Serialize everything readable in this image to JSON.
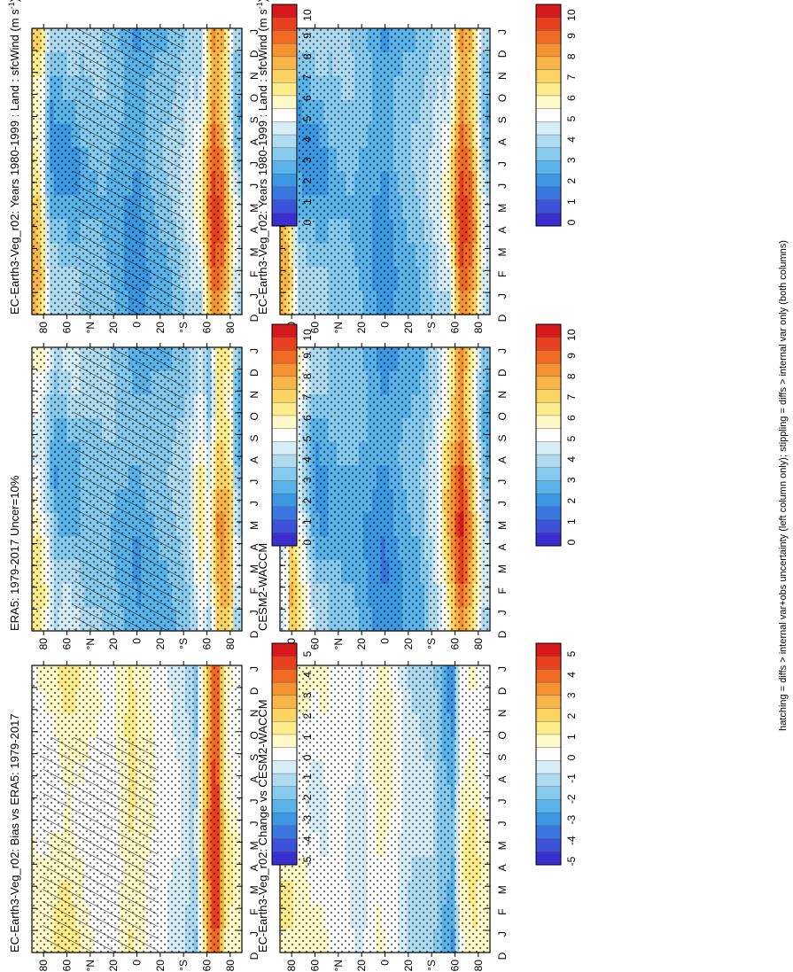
{
  "months": [
    "D",
    "J",
    "F",
    "M",
    "A",
    "M",
    "J",
    "J",
    "A",
    "S",
    "O",
    "N",
    "D",
    "J"
  ],
  "lat_ticks": [
    "80",
    "60",
    "°N",
    "20",
    "0",
    "20",
    "°S",
    "60",
    "80"
  ],
  "footnote": "hatching = diffs > internal var+obs uncertainty (left column only); stippling = diffs > internal var only (both columns)",
  "colorbars": {
    "abs": {
      "labels": [
        "10",
        "9",
        "8",
        "7",
        "6",
        "5",
        "4",
        "3",
        "2",
        "1",
        "0"
      ],
      "colors": [
        "#d7191c",
        "#e8401f",
        "#f06a23",
        "#f59232",
        "#f8b548",
        "#fbd463",
        "#fdec8c",
        "#fffac8",
        "#ffffff",
        "#d8eef7",
        "#b0dcf2",
        "#86caee",
        "#5ab4ea",
        "#3d98e3",
        "#3a76df",
        "#3c52d8",
        "#3a2ed0"
      ]
    },
    "diff": {
      "labels": [
        "5",
        "4",
        "3",
        "2",
        "1",
        "0",
        "-1",
        "-2",
        "-3",
        "-4",
        "-5"
      ],
      "colors": [
        "#d7191c",
        "#e8401f",
        "#f06a23",
        "#f59232",
        "#f8b548",
        "#fbd463",
        "#fdec8c",
        "#fffac8",
        "#ffffff",
        "#d8eef7",
        "#b0dcf2",
        "#86caee",
        "#5ab4ea",
        "#3d98e3",
        "#3a76df",
        "#3c52d8",
        "#3a2ed0"
      ]
    }
  },
  "panels": [
    {
      "id": "top-left",
      "title": "EC-Earth3-Veg_r02: Years 1980-1999 : Land : sfcWind (m s",
      "title_sup": "-1",
      "title_end": ")",
      "scale": "abs"
    },
    {
      "id": "mid-left",
      "title": "ERA5: 1979-2017 Uncer=10%",
      "scale": "abs"
    },
    {
      "id": "bot-left",
      "title": "EC-Earth3-Veg_r02: Bias vs ERA5: 1979-2017",
      "scale": "diff"
    },
    {
      "id": "top-right",
      "title": "EC-Earth3-Veg_r02: Years 1980-1999 : Land : sfcWind (m s",
      "title_sup": "-1",
      "title_end": ")",
      "scale": "abs"
    },
    {
      "id": "mid-right",
      "title": "CESM2-WACCM",
      "scale": "abs"
    },
    {
      "id": "bot-right",
      "title": "EC-Earth3-Veg_r02: Change vs CESM2-WACCM",
      "scale": "diff"
    }
  ],
  "chart_data": [
    {
      "type": "heatmap",
      "panel": "top-left",
      "title": "EC-Earth3-Veg_r02: Years 1980-1999 : Land : sfcWind (m s-1)",
      "x": "month",
      "y": "latitude",
      "value_range": [
        0,
        10
      ],
      "profile": [
        {
          "lat": 85,
          "v": 6.5
        },
        {
          "lat": 80,
          "v": 5.5
        },
        {
          "lat": 75,
          "v": 3
        },
        {
          "lat": 60,
          "v": 3
        },
        {
          "lat": 45,
          "v": 3.2
        },
        {
          "lat": 30,
          "v": 3.3
        },
        {
          "lat": 15,
          "v": 2.8
        },
        {
          "lat": 0,
          "v": 2.2
        },
        {
          "lat": -15,
          "v": 3
        },
        {
          "lat": -30,
          "v": 3.3
        },
        {
          "lat": -45,
          "v": 4.2
        },
        {
          "lat": -55,
          "v": 4.8
        },
        {
          "lat": -65,
          "v": 8.5
        },
        {
          "lat": -75,
          "v": 7.5
        },
        {
          "lat": -85,
          "v": 3.8
        }
      ]
    },
    {
      "type": "heatmap",
      "panel": "mid-left",
      "title": "ERA5: 1979-2017 Uncer=10%",
      "x": "month",
      "y": "latitude",
      "value_range": [
        0,
        10
      ],
      "profile": [
        {
          "lat": 85,
          "v": 5.5
        },
        {
          "lat": 80,
          "v": 5
        },
        {
          "lat": 70,
          "v": 3.2
        },
        {
          "lat": 55,
          "v": 3.5
        },
        {
          "lat": 40,
          "v": 3.3
        },
        {
          "lat": 25,
          "v": 3.4
        },
        {
          "lat": 10,
          "v": 2.9
        },
        {
          "lat": 0,
          "v": 2.6
        },
        {
          "lat": -15,
          "v": 3
        },
        {
          "lat": -30,
          "v": 3.2
        },
        {
          "lat": -45,
          "v": 3.8
        },
        {
          "lat": -55,
          "v": 5.5
        },
        {
          "lat": -62,
          "v": 4.2
        },
        {
          "lat": -70,
          "v": 7
        },
        {
          "lat": -80,
          "v": 6.5
        },
        {
          "lat": -85,
          "v": 3.5
        }
      ]
    },
    {
      "type": "heatmap",
      "panel": "bot-left",
      "title": "EC-Earth3-Veg_r02: Bias vs ERA5: 1979-2017",
      "x": "month",
      "y": "latitude",
      "value_range": [
        -5,
        5
      ],
      "profile": [
        {
          "lat": 80,
          "v": 0.2
        },
        {
          "lat": 60,
          "v": 0.8
        },
        {
          "lat": 40,
          "v": 0.2
        },
        {
          "lat": 20,
          "v": 0
        },
        {
          "lat": 5,
          "v": 1
        },
        {
          "lat": -5,
          "v": 0.5
        },
        {
          "lat": -20,
          "v": 0
        },
        {
          "lat": -40,
          "v": -0.5
        },
        {
          "lat": -50,
          "v": -1.5
        },
        {
          "lat": -60,
          "v": 2.5
        },
        {
          "lat": -68,
          "v": 4.5
        },
        {
          "lat": -75,
          "v": 1
        },
        {
          "lat": -85,
          "v": 0.2
        }
      ]
    },
    {
      "type": "heatmap",
      "panel": "top-right",
      "title": "EC-Earth3-Veg_r02: Years 1980-1999 : Land : sfcWind (m s-1)",
      "x": "month",
      "y": "latitude",
      "value_range": [
        0,
        10
      ],
      "profile": [
        {
          "lat": 85,
          "v": 6.5
        },
        {
          "lat": 80,
          "v": 5.5
        },
        {
          "lat": 75,
          "v": 3
        },
        {
          "lat": 60,
          "v": 3
        },
        {
          "lat": 45,
          "v": 3.2
        },
        {
          "lat": 30,
          "v": 3.3
        },
        {
          "lat": 15,
          "v": 2.8
        },
        {
          "lat": 0,
          "v": 2.2
        },
        {
          "lat": -15,
          "v": 3
        },
        {
          "lat": -30,
          "v": 3.3
        },
        {
          "lat": -45,
          "v": 4.2
        },
        {
          "lat": -55,
          "v": 4.8
        },
        {
          "lat": -65,
          "v": 8.5
        },
        {
          "lat": -75,
          "v": 7.5
        },
        {
          "lat": -85,
          "v": 3.8
        }
      ]
    },
    {
      "type": "heatmap",
      "panel": "mid-right",
      "title": "CESM2-WACCM",
      "x": "month",
      "y": "latitude",
      "value_range": [
        0,
        10
      ],
      "profile": [
        {
          "lat": 85,
          "v": 4
        },
        {
          "lat": 80,
          "v": 6.5
        },
        {
          "lat": 75,
          "v": 5.5
        },
        {
          "lat": 60,
          "v": 3
        },
        {
          "lat": 45,
          "v": 3
        },
        {
          "lat": 30,
          "v": 3.1
        },
        {
          "lat": 15,
          "v": 2.6
        },
        {
          "lat": 0,
          "v": 2
        },
        {
          "lat": -15,
          "v": 2.7
        },
        {
          "lat": -30,
          "v": 3
        },
        {
          "lat": -45,
          "v": 4.5
        },
        {
          "lat": -55,
          "v": 6.5
        },
        {
          "lat": -65,
          "v": 8.7
        },
        {
          "lat": -75,
          "v": 6.5
        },
        {
          "lat": -85,
          "v": 3.5
        }
      ]
    },
    {
      "type": "heatmap",
      "panel": "bot-right",
      "title": "EC-Earth3-Veg_r02: Change vs CESM2-WACCM",
      "x": "month",
      "y": "latitude",
      "value_range": [
        -5,
        5
      ],
      "profile": [
        {
          "lat": 80,
          "v": 0.5
        },
        {
          "lat": 60,
          "v": 0
        },
        {
          "lat": 40,
          "v": 0
        },
        {
          "lat": 20,
          "v": -0.5
        },
        {
          "lat": 5,
          "v": 0.5
        },
        {
          "lat": -5,
          "v": 0.3
        },
        {
          "lat": -20,
          "v": -0.8
        },
        {
          "lat": -40,
          "v": -1
        },
        {
          "lat": -50,
          "v": -2
        },
        {
          "lat": -58,
          "v": -2.5
        },
        {
          "lat": -65,
          "v": 0.3
        },
        {
          "lat": -75,
          "v": 0.8
        },
        {
          "lat": -85,
          "v": 0.2
        }
      ]
    }
  ]
}
